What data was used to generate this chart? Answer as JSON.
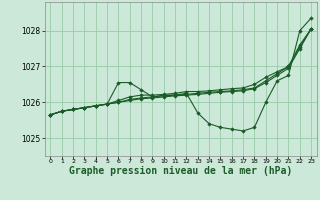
{
  "bg_color": "#cce8d8",
  "grid_color": "#99ccaa",
  "line_color": "#1a5c28",
  "marker_color": "#1a5c28",
  "xlabel": "Graphe pression niveau de la mer (hPa)",
  "xlabel_fontsize": 7,
  "ylabel_ticks": [
    1025,
    1026,
    1027,
    1028
  ],
  "xlim": [
    -0.5,
    23.5
  ],
  "ylim": [
    1024.5,
    1028.8
  ],
  "x_ticks": [
    0,
    1,
    2,
    3,
    4,
    5,
    6,
    7,
    8,
    9,
    10,
    11,
    12,
    13,
    14,
    15,
    16,
    17,
    18,
    19,
    20,
    21,
    22,
    23
  ],
  "series": [
    [
      1025.65,
      1025.75,
      1025.8,
      1025.85,
      1025.9,
      1025.95,
      1026.55,
      1026.55,
      1026.35,
      1026.15,
      1026.2,
      1026.2,
      1026.25,
      1025.7,
      1025.4,
      1025.3,
      1025.25,
      1025.2,
      1025.3,
      1026.0,
      1026.6,
      1026.75,
      1028.0,
      1028.35
    ],
    [
      1025.65,
      1025.75,
      1025.8,
      1025.85,
      1025.9,
      1025.95,
      1026.05,
      1026.15,
      1026.2,
      1026.2,
      1026.22,
      1026.25,
      1026.3,
      1026.3,
      1026.32,
      1026.35,
      1026.38,
      1026.4,
      1026.5,
      1026.7,
      1026.85,
      1027.0,
      1027.6,
      1028.05
    ],
    [
      1025.65,
      1025.75,
      1025.8,
      1025.85,
      1025.9,
      1025.95,
      1026.0,
      1026.08,
      1026.12,
      1026.15,
      1026.18,
      1026.2,
      1026.22,
      1026.25,
      1026.28,
      1026.3,
      1026.32,
      1026.35,
      1026.4,
      1026.6,
      1026.8,
      1027.0,
      1027.55,
      1028.05
    ],
    [
      1025.65,
      1025.75,
      1025.8,
      1025.85,
      1025.9,
      1025.95,
      1026.0,
      1026.05,
      1026.1,
      1026.12,
      1026.15,
      1026.18,
      1026.2,
      1026.22,
      1026.25,
      1026.28,
      1026.3,
      1026.32,
      1026.38,
      1026.55,
      1026.75,
      1026.95,
      1027.5,
      1028.05
    ]
  ]
}
